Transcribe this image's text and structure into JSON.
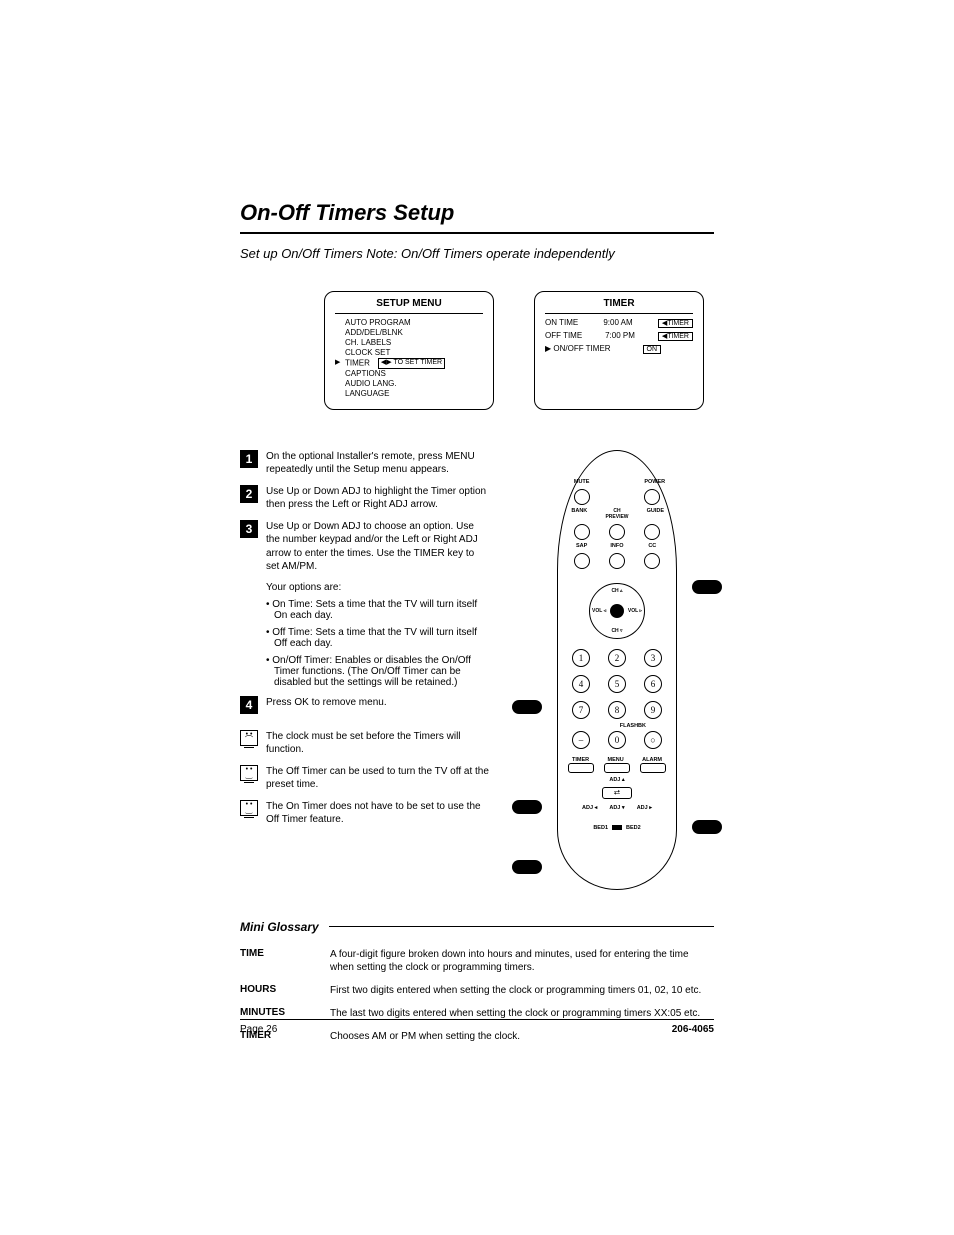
{
  "title": "On-Off Timers Setup",
  "subtitle": "Set up On/Off Timers  Note: On/Off Timers operate independently",
  "setup_menu": {
    "title": "SETUP MENU",
    "items": [
      "AUTO PROGRAM",
      "ADD/DEL/BLNK",
      "CH. LABELS",
      "CLOCK SET",
      "TIMER",
      "CAPTIONS",
      "AUDIO LANG.",
      "LANGUAGE"
    ],
    "selected_index": 4,
    "hint": "◀▶ TO SET TIMER"
  },
  "timer_menu": {
    "title": "TIMER",
    "rows": [
      {
        "label": "ON TIME",
        "value": "9:00 AM",
        "key": "TIMER",
        "selected": false
      },
      {
        "label": "OFF TIME",
        "value": "7:00 PM",
        "key": "TIMER",
        "selected": false
      },
      {
        "label": "ON/OFF TIMER",
        "value": "ON",
        "key": "",
        "selected": true
      }
    ]
  },
  "steps": [
    {
      "n": "1",
      "text": "On the optional Installer's remote, press MENU repeatedly until the Setup menu appears."
    },
    {
      "n": "2",
      "text": "Use Up or Down ADJ to highlight the Timer option then press the Left or Right ADJ arrow."
    },
    {
      "n": "3",
      "text": "Use Up or Down ADJ to choose an option. Use the number keypad and/or the Left or Right ADJ arrow to enter the times. Use the TIMER key to set AM/PM."
    },
    {
      "n": "4",
      "text": "Press OK to remove menu."
    }
  ],
  "options_intro": "Your options are:",
  "options": [
    "On Time: Sets a time that the TV will turn itself On each day.",
    "Off Time: Sets a time that the TV will turn itself Off each day.",
    "On/Off Timer: Enables or disables the On/Off Timer functions. (The On/Off Timer can be disabled but the settings will be retained.)"
  ],
  "tips": [
    {
      "face": "sad",
      "text": "The clock must be set before the Timers will function."
    },
    {
      "face": "happy",
      "text": "The Off Timer can be used to turn the TV off at the preset time."
    },
    {
      "face": "happy",
      "text": "The On Timer does not have to be set to use the Off Timer feature."
    }
  ],
  "remote": {
    "top_row1_labels": [
      "MUTE",
      "",
      "POWER"
    ],
    "top_row2_labels": [
      "BANK",
      "CH PREVIEW",
      "GUIDE"
    ],
    "top_row3_labels": [
      "SAP",
      "INFO",
      "CC"
    ],
    "dpad": {
      "up": "CH ▵",
      "down": "CH ▿",
      "left": "VOL ◃",
      "right": "VOL ▹"
    },
    "keypad": [
      [
        "1",
        "2",
        "3"
      ],
      [
        "4",
        "5",
        "6"
      ],
      [
        "7",
        "8",
        "9"
      ],
      [
        "–",
        "0",
        "○"
      ]
    ],
    "flashbk": "FLASHBK",
    "bottom_labels": [
      "TIMER",
      "MENU",
      "ALARM"
    ],
    "adj_labels": {
      "up": "ADJ ▴",
      "down": "ADJ ▾",
      "left": "ADJ ◂",
      "right": "ADJ ▸"
    },
    "bed": [
      "BED1",
      "BED2"
    ]
  },
  "glossary": {
    "title": "Mini Glossary",
    "rows": [
      {
        "term": "TIME",
        "def": "A four-digit figure broken down into hours and minutes, used for entering the time when setting the clock or programming timers."
      },
      {
        "term": "HOURS",
        "def": "First two digits entered when setting the clock or programming timers 01, 02, 10 etc."
      },
      {
        "term": "MINUTES",
        "def": "The last two digits entered when setting the clock or programming timers XX:05 etc."
      },
      {
        "term": "TIMER",
        "def": "Chooses AM or PM when setting the clock."
      }
    ]
  },
  "footer": {
    "left": "Page  26",
    "right": "206-4065"
  }
}
